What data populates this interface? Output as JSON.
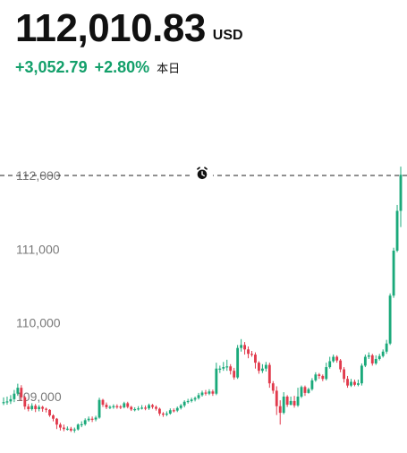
{
  "header": {
    "price": "112,010.83",
    "currency": "USD",
    "change_abs": "+3,052.79",
    "change_pct": "+2.80%",
    "period": "本日"
  },
  "colors": {
    "up": "#1aa97a",
    "down": "#e13a4c",
    "text": "#111111",
    "axis_label": "#7a7a7a",
    "change": "#14a06b"
  },
  "icons": {
    "alarm": "alarm-clock-icon"
  },
  "chart_data": {
    "type": "candlestick",
    "y_ticks": [
      {
        "value": 112000,
        "label": "112,000"
      },
      {
        "value": 111000,
        "label": "111,000"
      },
      {
        "value": 110000,
        "label": "110,000"
      },
      {
        "value": 109000,
        "label": "109,000"
      }
    ],
    "reference_line": {
      "value": 112000,
      "style": "dashed"
    },
    "candles": [
      [
        108925,
        108925,
        108990,
        108885
      ],
      [
        108925,
        108935,
        109000,
        108890
      ],
      [
        108935,
        108965,
        109020,
        108900
      ],
      [
        108965,
        109040,
        109090,
        108925
      ],
      [
        109040,
        109120,
        109175,
        109010
      ],
      [
        109120,
        108990,
        109155,
        108940
      ],
      [
        108990,
        108865,
        109010,
        108825
      ],
      [
        108865,
        108830,
        108900,
        108800
      ],
      [
        108830,
        108875,
        108910,
        108810
      ],
      [
        108875,
        108830,
        108900,
        108790
      ],
      [
        108830,
        108860,
        108885,
        108800
      ],
      [
        108860,
        108835,
        108875,
        108795
      ],
      [
        108835,
        108820,
        108850,
        108785
      ],
      [
        108820,
        108745,
        108830,
        108725
      ],
      [
        108745,
        108700,
        108760,
        108665
      ],
      [
        108700,
        108620,
        108710,
        108560
      ],
      [
        108620,
        108580,
        108645,
        108540
      ],
      [
        108580,
        108560,
        108620,
        108530
      ],
      [
        108560,
        108565,
        108595,
        108540
      ],
      [
        108565,
        108540,
        108590,
        108520
      ],
      [
        108540,
        108555,
        108580,
        108510
      ],
      [
        108555,
        108620,
        108635,
        108540
      ],
      [
        108620,
        108625,
        108665,
        108585
      ],
      [
        108625,
        108680,
        108705,
        108605
      ],
      [
        108680,
        108700,
        108730,
        108660
      ],
      [
        108700,
        108690,
        108730,
        108655
      ],
      [
        108690,
        108715,
        108740,
        108665
      ],
      [
        108715,
        108955,
        108985,
        108700
      ],
      [
        108955,
        108890,
        108970,
        108860
      ],
      [
        108890,
        108855,
        108920,
        108830
      ],
      [
        108855,
        108860,
        108880,
        108830
      ],
      [
        108860,
        108870,
        108895,
        108835
      ],
      [
        108870,
        108865,
        108895,
        108835
      ],
      [
        108865,
        108855,
        108885,
        108830
      ],
      [
        108855,
        108910,
        108930,
        108840
      ],
      [
        108910,
        108860,
        108930,
        108840
      ],
      [
        108860,
        108825,
        108875,
        108805
      ],
      [
        108825,
        108830,
        108855,
        108800
      ],
      [
        108830,
        108840,
        108870,
        108810
      ],
      [
        108840,
        108850,
        108885,
        108825
      ],
      [
        108850,
        108840,
        108880,
        108815
      ],
      [
        108840,
        108885,
        108905,
        108820
      ],
      [
        108885,
        108860,
        108900,
        108835
      ],
      [
        108860,
        108835,
        108880,
        108810
      ],
      [
        108835,
        108770,
        108850,
        108740
      ],
      [
        108770,
        108755,
        108790,
        108725
      ],
      [
        108755,
        108770,
        108800,
        108735
      ],
      [
        108770,
        108815,
        108840,
        108755
      ],
      [
        108815,
        108810,
        108840,
        108785
      ],
      [
        108810,
        108845,
        108865,
        108790
      ],
      [
        108845,
        108880,
        108900,
        108825
      ],
      [
        108880,
        108930,
        108950,
        108855
      ],
      [
        108930,
        108940,
        108970,
        108905
      ],
      [
        108940,
        108960,
        108985,
        108920
      ],
      [
        108960,
        108980,
        109000,
        108935
      ],
      [
        108980,
        109020,
        109050,
        108960
      ],
      [
        109020,
        109055,
        109080,
        109000
      ],
      [
        109055,
        109040,
        109090,
        109015
      ],
      [
        109040,
        109070,
        109100,
        109020
      ],
      [
        109070,
        109040,
        109095,
        109010
      ],
      [
        109040,
        109380,
        109460,
        109020
      ],
      [
        109380,
        109380,
        109420,
        109320
      ],
      [
        109380,
        109400,
        109470,
        109350
      ],
      [
        109400,
        109410,
        109500,
        109350
      ],
      [
        109410,
        109350,
        109440,
        109300
      ],
      [
        109350,
        109260,
        109390,
        109230
      ],
      [
        109260,
        109660,
        109700,
        109240
      ],
      [
        109660,
        109700,
        109780,
        109610
      ],
      [
        109700,
        109640,
        109740,
        109570
      ],
      [
        109640,
        109580,
        109680,
        109520
      ],
      [
        109580,
        109570,
        109620,
        109540
      ],
      [
        109570,
        109460,
        109600,
        109380
      ],
      [
        109460,
        109350,
        109480,
        109310
      ],
      [
        109350,
        109380,
        109440,
        109320
      ],
      [
        109380,
        109430,
        109470,
        109340
      ],
      [
        109430,
        109180,
        109460,
        109120
      ],
      [
        109180,
        109080,
        109210,
        109040
      ],
      [
        109080,
        108870,
        109140,
        108750
      ],
      [
        108870,
        108780,
        108950,
        108620
      ],
      [
        108780,
        109000,
        109060,
        108760
      ],
      [
        109000,
        108890,
        109020,
        108860
      ],
      [
        108890,
        108940,
        109000,
        108880
      ],
      [
        108940,
        108880,
        109010,
        108850
      ],
      [
        108880,
        109000,
        109120,
        108860
      ],
      [
        109000,
        109130,
        109150,
        108980
      ],
      [
        109130,
        109050,
        109150,
        109010
      ],
      [
        109050,
        109100,
        109120,
        109040
      ],
      [
        109100,
        109220,
        109250,
        109080
      ],
      [
        109220,
        109300,
        109330,
        109200
      ],
      [
        109300,
        109280,
        109320,
        109240
      ],
      [
        109280,
        109240,
        109300,
        109210
      ],
      [
        109240,
        109400,
        109460,
        109220
      ],
      [
        109400,
        109480,
        109540,
        109380
      ],
      [
        109480,
        109540,
        109570,
        109460
      ],
      [
        109540,
        109490,
        109560,
        109460
      ],
      [
        109490,
        109370,
        109510,
        109330
      ],
      [
        109370,
        109240,
        109400,
        109190
      ],
      [
        109240,
        109150,
        109280,
        109120
      ],
      [
        109150,
        109200,
        109240,
        109130
      ],
      [
        109200,
        109160,
        109230,
        109140
      ],
      [
        109160,
        109180,
        109230,
        109140
      ],
      [
        109180,
        109420,
        109450,
        109150
      ],
      [
        109420,
        109540,
        109570,
        109400
      ],
      [
        109540,
        109560,
        109600,
        109510
      ],
      [
        109560,
        109450,
        109580,
        109420
      ],
      [
        109450,
        109510,
        109560,
        109430
      ],
      [
        109510,
        109550,
        109580,
        109490
      ],
      [
        109550,
        109610,
        109640,
        109530
      ],
      [
        109610,
        109720,
        109770,
        109580
      ],
      [
        109720,
        110370,
        110400,
        109700
      ],
      [
        110370,
        110980,
        111020,
        110340
      ],
      [
        110980,
        111520,
        111600,
        110960
      ],
      [
        111520,
        112010,
        112120,
        111300
      ]
    ],
    "ylim": [
      108450,
      112200
    ]
  }
}
